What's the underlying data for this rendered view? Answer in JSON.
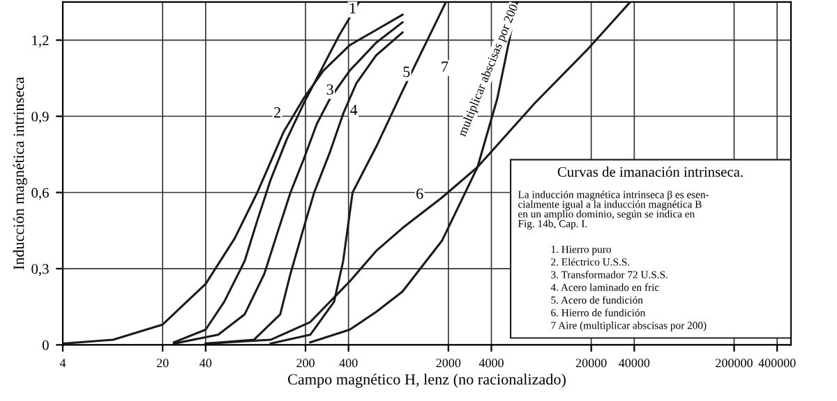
{
  "chart_data": {
    "type": "line",
    "xlabel": "Campo magnético H, lenz (no racionalizado)",
    "ylabel": "Inducción magnética intrinseca",
    "log": "x",
    "xlim": [
      4,
      500000
    ],
    "ylim": [
      0,
      1.35
    ],
    "xticks": [
      4,
      20,
      40,
      200,
      400,
      2000,
      4000,
      20000,
      40000,
      200000,
      400000
    ],
    "yticks": [
      0,
      {
        "value": 0.3,
        "label": "0,3"
      },
      {
        "value": 0.6,
        "label": "0,6"
      },
      {
        "value": 0.9,
        "label": "0,9"
      },
      {
        "value": 1.2,
        "label": "1,2"
      }
    ],
    "grid": true,
    "marker": "none",
    "line_style": "solid",
    "series": [
      {
        "color": "#1a1a1a",
        "x": [
          24,
          40,
          54,
          75,
          92,
          114,
          148,
          194,
          256,
          345,
          474
        ],
        "values": [
          0.01,
          0.06,
          0.17,
          0.33,
          0.49,
          0.65,
          0.81,
          0.95,
          1.08,
          1.22,
          1.35
        ]
      },
      {
        "color": "#1a1a1a",
        "x": [
          4,
          9,
          20,
          40,
          64,
          92,
          141,
          194,
          267,
          408,
          625,
          955
        ],
        "values": [
          0.005,
          0.02,
          0.08,
          0.24,
          0.42,
          0.6,
          0.84,
          0.97,
          1.08,
          1.18,
          1.24,
          1.3
        ]
      },
      {
        "color": "#1a1a1a",
        "x": [
          24,
          49,
          75,
          103,
          127,
          157,
          194,
          240,
          297,
          408,
          625,
          955
        ],
        "values": [
          0.005,
          0.04,
          0.12,
          0.28,
          0.44,
          0.6,
          0.73,
          0.87,
          0.97,
          1.08,
          1.19,
          1.27
        ]
      },
      {
        "color": "#1a1a1a",
        "x": [
          40,
          87,
          133,
          157,
          194,
          230,
          297,
          367,
          454,
          625,
          955
        ],
        "values": [
          0.005,
          0.02,
          0.12,
          0.28,
          0.46,
          0.6,
          0.76,
          0.91,
          1.03,
          1.14,
          1.23
        ]
      },
      {
        "color": "#1a1a1a",
        "x": [
          114,
          216,
          317,
          367,
          427,
          625,
          955,
          1923
        ],
        "values": [
          0.005,
          0.04,
          0.17,
          0.33,
          0.6,
          0.78,
          1.0,
          1.35
        ]
      },
      {
        "color": "#1a1a1a",
        "x": [
          40,
          114,
          216,
          408,
          625,
          955,
          1804,
          3200,
          8000,
          18600,
          37500
        ],
        "values": [
          0.005,
          0.02,
          0.09,
          0.25,
          0.37,
          0.46,
          0.58,
          0.7,
          0.95,
          1.16,
          1.35
        ]
      },
      {
        "color": "#1a1a1a",
        "x": [
          216,
          408,
          625,
          955,
          1804,
          3200,
          4400,
          6055
        ],
        "values": [
          0.01,
          0.06,
          0.13,
          0.21,
          0.41,
          0.7,
          0.97,
          1.35
        ]
      }
    ],
    "annotations": [
      {
        "text": "1",
        "x": 427,
        "y": 1.32
      },
      {
        "text": "2",
        "x": 127,
        "y": 0.91
      },
      {
        "text": "3",
        "x": 297,
        "y": 1.0
      },
      {
        "text": "4",
        "x": 435,
        "y": 0.92
      },
      {
        "text": "5",
        "x": 1018,
        "y": 1.07
      },
      {
        "text": "6",
        "x": 1259,
        "y": 0.59
      },
      {
        "text": "7",
        "x": 1884,
        "y": 1.09
      },
      "multiplicar abscisas por 200",
      "Curvas de imanación intrinseca.",
      "La inducción magnética intrinseca β es esen-\ncialmente igual a la inducción magnética B\nen un amplio dominio, según se indica en\nFig. 14b, Cap. I.",
      "1. Hierro puro",
      "2. Eléctrico U.S.S.",
      "3. Transformador 72 U.S.S.",
      "4. Acero laminado en fric",
      "5. Acero de fundición",
      "6. Hierro de fundición",
      "7 Aire (multiplicar abscisas por 200)"
    ]
  }
}
